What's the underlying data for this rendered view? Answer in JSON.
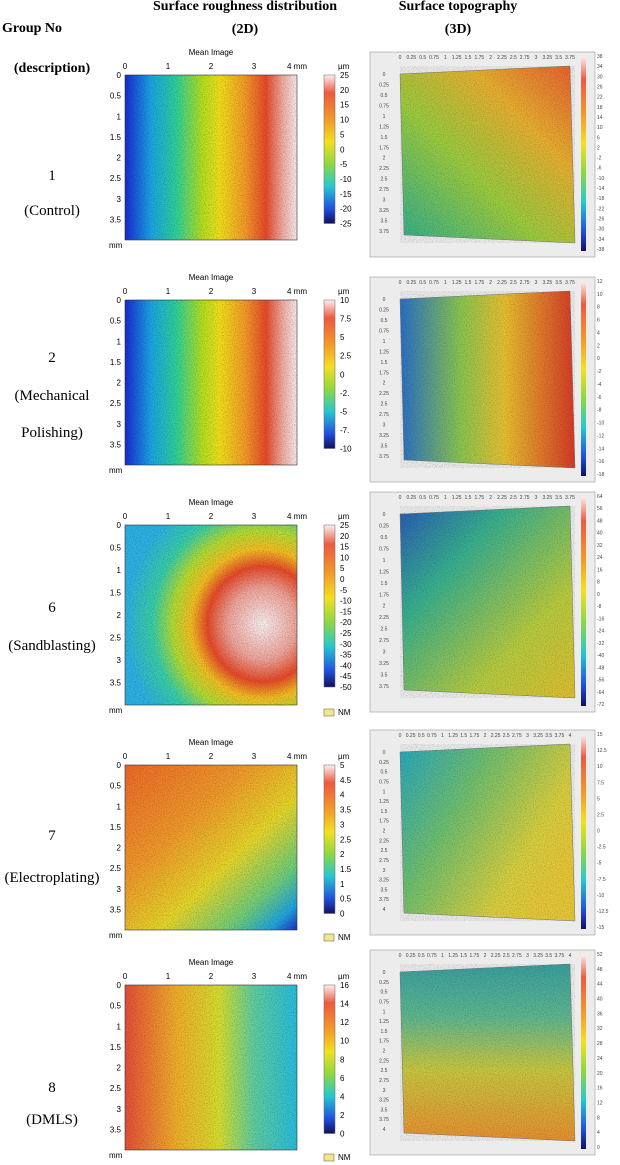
{
  "header": {
    "group": "Group No",
    "group_sub": "(description)",
    "map": "Surface roughness distribution",
    "map_sub": "(2D)",
    "topo": "Surface topography",
    "topo_sub": "(3D)"
  },
  "rows": [
    {
      "number": "1",
      "description": [
        "(Control)"
      ],
      "map": {
        "title": "Mean Image",
        "x_ticks": [
          "0",
          "1",
          "2",
          "3",
          "4 mm"
        ],
        "y_ticks": [
          "0",
          "0.5",
          "1",
          "1.5",
          "2",
          "2.5",
          "3",
          "3.5"
        ],
        "y_unit": "mm",
        "scale_unit": "µm",
        "scale_ticks": [
          "25",
          "20",
          "15",
          "10",
          "5",
          "0",
          "-5",
          "-10",
          "-15",
          "-20",
          "-25"
        ]
      },
      "topo": {
        "x_ticks": [
          "0",
          "0.25",
          "0.5",
          "0.75",
          "1",
          "1.25",
          "1.5",
          "1.75",
          "2",
          "2.25",
          "2.5",
          "2.75",
          "3",
          "3.25",
          "3.5",
          "3.75"
        ],
        "scale_ticks": [
          "38",
          "34",
          "30",
          "26",
          "22",
          "18",
          "14",
          "10",
          "6",
          "2",
          "-2",
          "-6",
          "-10",
          "-14",
          "-18",
          "-22",
          "-26",
          "-30",
          "-34",
          "-38"
        ]
      }
    },
    {
      "number": "2",
      "description": [
        "(Mechanical",
        "Polishing)"
      ],
      "map": {
        "title": "Mean Image",
        "x_ticks": [
          "0",
          "1",
          "2",
          "3",
          "4 mm"
        ],
        "y_ticks": [
          "0",
          "0.5",
          "1",
          "1.5",
          "2",
          "2.5",
          "3",
          "3.5"
        ],
        "y_unit": "mm",
        "scale_unit": "µm",
        "scale_ticks": [
          "10",
          "7.5",
          "5",
          "2.5",
          "0",
          "-2.",
          "-5",
          "-7.",
          "-10"
        ]
      },
      "topo": {
        "x_ticks": [
          "0",
          "0.25",
          "0.5",
          "0.75",
          "1",
          "1.25",
          "1.5",
          "1.75",
          "2",
          "2.25",
          "2.5",
          "2.75",
          "3",
          "3.25",
          "3.5",
          "3.75"
        ],
        "scale_ticks": [
          "12",
          "10",
          "8",
          "6",
          "4",
          "2",
          "0",
          "-2",
          "-4",
          "-6",
          "-8",
          "-10",
          "-12",
          "-14",
          "-16",
          "-18"
        ]
      }
    },
    {
      "number": "6",
      "description": [
        "(Sandblasting)"
      ],
      "map": {
        "title": "Mean Image",
        "x_ticks": [
          "0",
          "1",
          "2",
          "3",
          "4 mm"
        ],
        "y_ticks": [
          "0",
          "0.5",
          "1",
          "1.5",
          "2",
          "2.5",
          "3",
          "3.5"
        ],
        "y_unit": "mm",
        "scale_unit": "µm",
        "scale_ticks": [
          "25",
          "20",
          "15",
          "10",
          "5",
          "0",
          "-5",
          "-10",
          "-15",
          "-20",
          "-25",
          "-30",
          "-35",
          "-40",
          "-45",
          "-50"
        ],
        "legend": "NM"
      },
      "topo": {
        "x_ticks": [
          "0",
          "0.25",
          "0.5",
          "0.75",
          "1",
          "1.25",
          "1.5",
          "1.75",
          "2",
          "2.25",
          "2.5",
          "2.75",
          "3",
          "3.25",
          "3.5",
          "3.75"
        ],
        "scale_ticks": [
          "64",
          "56",
          "48",
          "40",
          "32",
          "24",
          "16",
          "8",
          "0",
          "-8",
          "-16",
          "-24",
          "-32",
          "-40",
          "-48",
          "-56",
          "-64",
          "-72"
        ]
      }
    },
    {
      "number": "7",
      "description": [
        "(Electroplating)"
      ],
      "map": {
        "title": "Mean Image",
        "x_ticks": [
          "0",
          "1",
          "2",
          "3",
          "4 mm"
        ],
        "y_ticks": [
          "0",
          "0.5",
          "1",
          "1.5",
          "2",
          "2.5",
          "3",
          "3.5"
        ],
        "y_unit": "mm",
        "scale_unit": "µm",
        "scale_ticks": [
          "5",
          "4.5",
          "4",
          "3.5",
          "3",
          "2.5",
          "2",
          "1.5",
          "1",
          "0.5",
          "0"
        ],
        "legend": "NM"
      },
      "topo": {
        "x_ticks": [
          "0",
          "0.25",
          "0.5",
          "0.75",
          "1",
          "1.25",
          "1.5",
          "1.75",
          "2",
          "2.25",
          "2.5",
          "2.75",
          "3",
          "3.25",
          "3.5",
          "3.75",
          "4"
        ],
        "scale_ticks": [
          "15",
          "12.5",
          "10",
          "7.5",
          "5",
          "2.5",
          "0",
          "-2.5",
          "-5",
          "-7.5",
          "-10",
          "-12.5",
          "-15"
        ]
      }
    },
    {
      "number": "8",
      "description": [
        "(DMLS)"
      ],
      "map": {
        "title": "Mean Image",
        "x_ticks": [
          "0",
          "1",
          "2",
          "3",
          "4 mm"
        ],
        "y_ticks": [
          "0",
          "0.5",
          "1",
          "1.5",
          "2",
          "2.5",
          "3",
          "3.5"
        ],
        "y_unit": "mm",
        "scale_unit": "µm",
        "scale_ticks": [
          "16",
          "14",
          "12",
          "10",
          "8",
          "6",
          "4",
          "2",
          "0"
        ],
        "legend": "NM"
      },
      "topo": {
        "x_ticks": [
          "0",
          "0.25",
          "0.5",
          "0.75",
          "1",
          "1.25",
          "1.5",
          "1.75",
          "2",
          "2.25",
          "2.5",
          "2.75",
          "3",
          "3.25",
          "3.5",
          "3.75",
          "4"
        ],
        "scale_ticks": [
          "52",
          "48",
          "44",
          "40",
          "36",
          "32",
          "28",
          "24",
          "20",
          "16",
          "12",
          "8",
          "4",
          "0"
        ]
      }
    }
  ]
}
